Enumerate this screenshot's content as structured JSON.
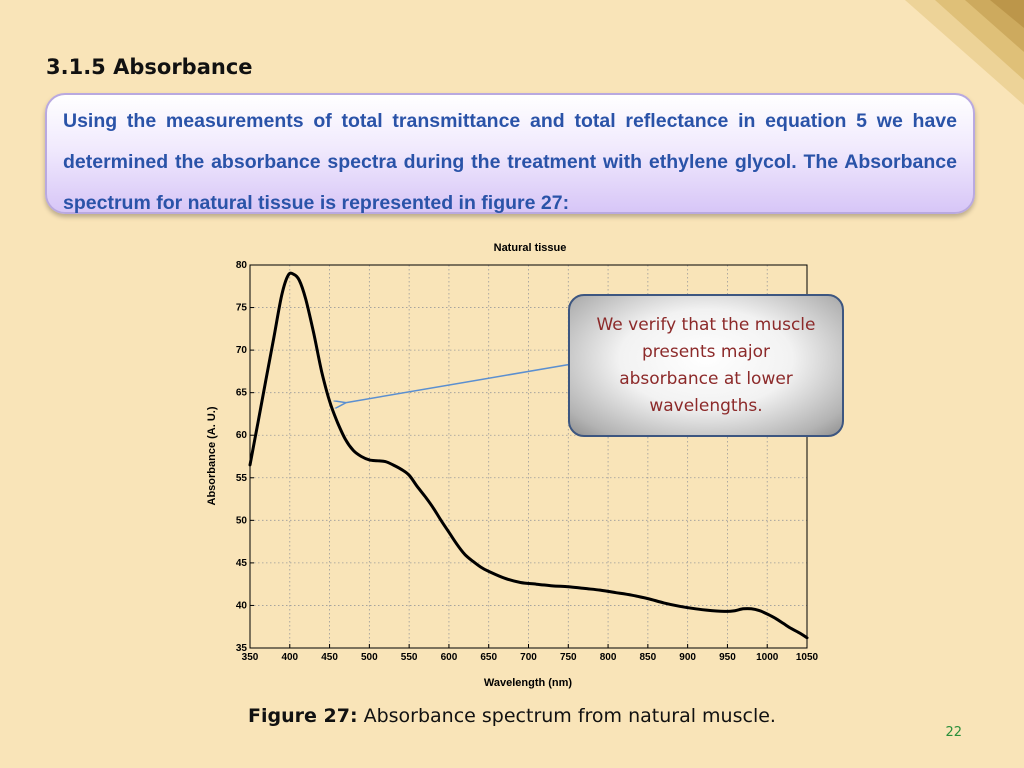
{
  "slide": {
    "section_title": "3.1.5 Absorbance",
    "intro_text": "Using the measurements of total transmittance and total reflectance in equation 5 we have determined the absorbance spectra during the treatment with ethylene glycol. The Absorbance spectrum for natural tissue is represented in figure 27:",
    "callout_text": "We verify that the muscle presents major absorbance at lower wavelengths.",
    "caption_label": "Figure 27:",
    "caption_text": " Absorbance spectrum from natural muscle.",
    "page_number": "22"
  },
  "colors": {
    "background": "#f9e4b8",
    "intro_text": "#2a53a8",
    "callout_text": "#8c2a2a",
    "callout_border": "#3d5680",
    "page_number": "#2a8f3a",
    "curve": "#000000",
    "arrow": "#5b8fd0"
  },
  "chart_data": {
    "type": "line",
    "title": "Natural tissue",
    "xlabel": "Wavelength (nm)",
    "ylabel": "Absorbance (A. U.)",
    "xlim": [
      350,
      1050
    ],
    "ylim": [
      35,
      80
    ],
    "xticks": [
      350,
      400,
      450,
      500,
      550,
      600,
      650,
      700,
      750,
      800,
      850,
      900,
      950,
      1000,
      1050
    ],
    "yticks": [
      35,
      40,
      45,
      50,
      55,
      60,
      65,
      70,
      75,
      80
    ],
    "grid": true,
    "series": [
      {
        "x": [
          350,
          360,
          370,
          380,
          390,
          398,
          405,
          412,
          420,
          430,
          440,
          450,
          460,
          470,
          480,
          490,
          500,
          510,
          520,
          530,
          540,
          550,
          560,
          570,
          580,
          590,
          600,
          610,
          620,
          630,
          640,
          650,
          670,
          690,
          710,
          730,
          750,
          770,
          790,
          810,
          830,
          850,
          870,
          890,
          910,
          930,
          950,
          960,
          970,
          980,
          990,
          1000,
          1010,
          1020,
          1030,
          1040,
          1050
        ],
        "y": [
          56.5,
          61.5,
          66.5,
          71.5,
          76.5,
          78.8,
          78.9,
          78.2,
          76.0,
          72.0,
          67.5,
          64.0,
          61.5,
          59.5,
          58.2,
          57.5,
          57.1,
          57.0,
          56.9,
          56.5,
          56.0,
          55.3,
          54.0,
          52.8,
          51.5,
          50.0,
          48.6,
          47.2,
          46.0,
          45.2,
          44.5,
          44.0,
          43.2,
          42.7,
          42.5,
          42.3,
          42.2,
          42.0,
          41.8,
          41.5,
          41.2,
          40.8,
          40.3,
          39.9,
          39.6,
          39.4,
          39.3,
          39.4,
          39.6,
          39.6,
          39.4,
          39.0,
          38.5,
          37.9,
          37.3,
          36.8,
          36.2
        ]
      }
    ]
  }
}
